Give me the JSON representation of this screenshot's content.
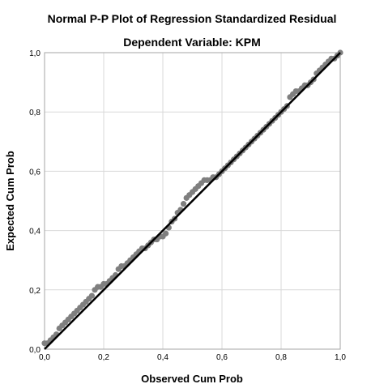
{
  "chart_data": {
    "type": "scatter",
    "title": "Normal P-P Plot of Regression Standardized Residual",
    "subtitle": "Dependent Variable: KPM",
    "xlabel": "Observed Cum Prob",
    "ylabel": "Expected Cum Prob",
    "xlim": [
      0,
      1
    ],
    "ylim": [
      0,
      1
    ],
    "x_ticks": [
      "0,0",
      "0,2",
      "0,4",
      "0,6",
      "0,8",
      "1,0"
    ],
    "y_ticks": [
      "0,0",
      "0,2",
      "0,4",
      "0,6",
      "0,8",
      "1,0"
    ],
    "grid": true,
    "reference_line": {
      "from": [
        0,
        0
      ],
      "to": [
        1,
        1
      ]
    },
    "colors": {
      "points": "#7f7f7f",
      "line": "#000000",
      "grid": "#d9d9d9",
      "frame": "#a6a6a6"
    },
    "points": [
      [
        0.0,
        0.02
      ],
      [
        0.01,
        0.02
      ],
      [
        0.02,
        0.03
      ],
      [
        0.03,
        0.04
      ],
      [
        0.04,
        0.05
      ],
      [
        0.05,
        0.07
      ],
      [
        0.06,
        0.08
      ],
      [
        0.07,
        0.09
      ],
      [
        0.08,
        0.1
      ],
      [
        0.09,
        0.11
      ],
      [
        0.1,
        0.12
      ],
      [
        0.11,
        0.13
      ],
      [
        0.12,
        0.14
      ],
      [
        0.13,
        0.15
      ],
      [
        0.14,
        0.16
      ],
      [
        0.15,
        0.17
      ],
      [
        0.16,
        0.18
      ],
      [
        0.17,
        0.2
      ],
      [
        0.18,
        0.21
      ],
      [
        0.19,
        0.21
      ],
      [
        0.2,
        0.22
      ],
      [
        0.21,
        0.22
      ],
      [
        0.22,
        0.23
      ],
      [
        0.23,
        0.24
      ],
      [
        0.24,
        0.25
      ],
      [
        0.25,
        0.27
      ],
      [
        0.26,
        0.28
      ],
      [
        0.27,
        0.28
      ],
      [
        0.28,
        0.29
      ],
      [
        0.29,
        0.3
      ],
      [
        0.3,
        0.31
      ],
      [
        0.31,
        0.32
      ],
      [
        0.32,
        0.33
      ],
      [
        0.33,
        0.34
      ],
      [
        0.34,
        0.34
      ],
      [
        0.35,
        0.35
      ],
      [
        0.36,
        0.36
      ],
      [
        0.37,
        0.37
      ],
      [
        0.38,
        0.37
      ],
      [
        0.39,
        0.38
      ],
      [
        0.4,
        0.38
      ],
      [
        0.41,
        0.39
      ],
      [
        0.42,
        0.41
      ],
      [
        0.43,
        0.43
      ],
      [
        0.44,
        0.44
      ],
      [
        0.45,
        0.46
      ],
      [
        0.46,
        0.47
      ],
      [
        0.47,
        0.49
      ],
      [
        0.48,
        0.51
      ],
      [
        0.49,
        0.52
      ],
      [
        0.5,
        0.53
      ],
      [
        0.51,
        0.54
      ],
      [
        0.52,
        0.55
      ],
      [
        0.53,
        0.56
      ],
      [
        0.54,
        0.57
      ],
      [
        0.55,
        0.57
      ],
      [
        0.56,
        0.57
      ],
      [
        0.57,
        0.58
      ],
      [
        0.58,
        0.58
      ],
      [
        0.59,
        0.59
      ],
      [
        0.6,
        0.6
      ],
      [
        0.61,
        0.61
      ],
      [
        0.62,
        0.62
      ],
      [
        0.63,
        0.63
      ],
      [
        0.64,
        0.64
      ],
      [
        0.65,
        0.65
      ],
      [
        0.66,
        0.66
      ],
      [
        0.67,
        0.67
      ],
      [
        0.68,
        0.68
      ],
      [
        0.69,
        0.69
      ],
      [
        0.7,
        0.7
      ],
      [
        0.71,
        0.71
      ],
      [
        0.72,
        0.72
      ],
      [
        0.73,
        0.73
      ],
      [
        0.74,
        0.74
      ],
      [
        0.75,
        0.75
      ],
      [
        0.76,
        0.76
      ],
      [
        0.77,
        0.77
      ],
      [
        0.78,
        0.78
      ],
      [
        0.79,
        0.79
      ],
      [
        0.8,
        0.8
      ],
      [
        0.81,
        0.81
      ],
      [
        0.82,
        0.82
      ],
      [
        0.83,
        0.85
      ],
      [
        0.84,
        0.86
      ],
      [
        0.85,
        0.87
      ],
      [
        0.86,
        0.87
      ],
      [
        0.87,
        0.88
      ],
      [
        0.88,
        0.89
      ],
      [
        0.89,
        0.89
      ],
      [
        0.9,
        0.9
      ],
      [
        0.91,
        0.91
      ],
      [
        0.92,
        0.93
      ],
      [
        0.93,
        0.94
      ],
      [
        0.94,
        0.95
      ],
      [
        0.95,
        0.96
      ],
      [
        0.96,
        0.97
      ],
      [
        0.97,
        0.98
      ],
      [
        0.98,
        0.98
      ],
      [
        0.99,
        0.99
      ],
      [
        1.0,
        1.0
      ]
    ]
  }
}
